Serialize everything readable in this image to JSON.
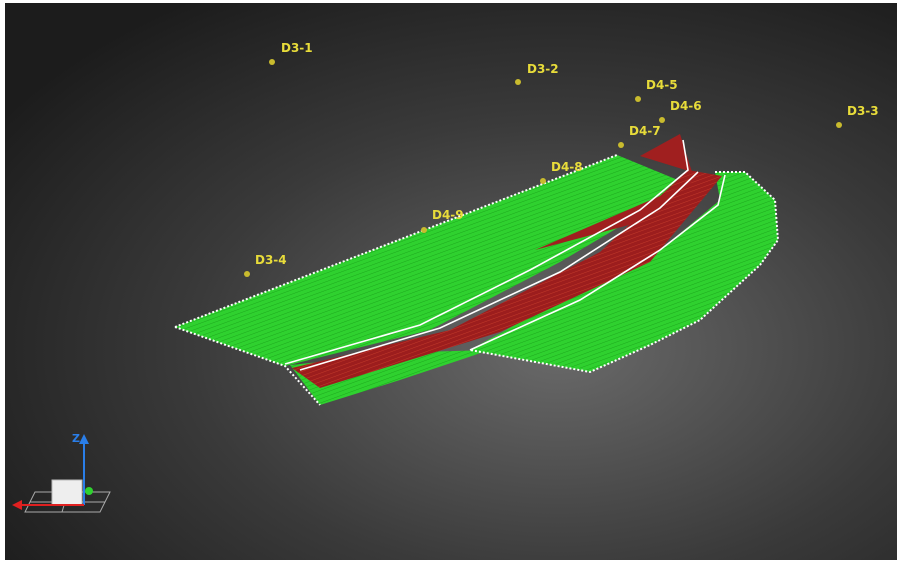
{
  "points": [
    {
      "label": "D3-1"
    },
    {
      "label": "D3-2"
    },
    {
      "label": "D4-5"
    },
    {
      "label": "D4-6"
    },
    {
      "label": "D3-3"
    },
    {
      "label": "D4-7"
    },
    {
      "label": "D4-8"
    },
    {
      "label": "D4-9"
    },
    {
      "label": "D3-4"
    }
  ],
  "gizmo": {
    "axis_label": "Z"
  }
}
